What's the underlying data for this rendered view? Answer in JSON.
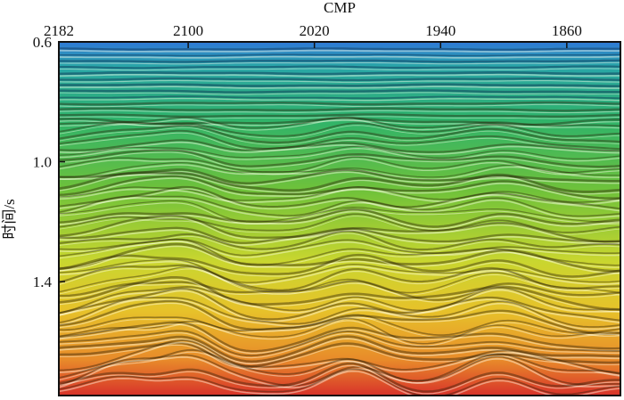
{
  "figure": {
    "x_axis": {
      "title": "CMP",
      "ticks": [
        {
          "label": "2182",
          "value": 2182
        },
        {
          "label": "2100",
          "value": 2100
        },
        {
          "label": "2020",
          "value": 2020
        },
        {
          "label": "1940",
          "value": 1940
        },
        {
          "label": "1860",
          "value": 1860
        }
      ],
      "range": [
        2182,
        1826
      ],
      "position": "top",
      "reversed": true
    },
    "y_axis": {
      "title": "时间/s",
      "ticks": [
        {
          "label": "0.6",
          "value": 0.6
        },
        {
          "label": "1.0",
          "value": 1.0
        },
        {
          "label": "1.4",
          "value": 1.4
        }
      ],
      "range": [
        0.6,
        1.78
      ],
      "unit": "s"
    },
    "image": {
      "type": "seismic-section",
      "colormap": [
        "#2f78d6",
        "#2fb36a",
        "#6fc23a",
        "#c9d62f",
        "#e7c22a",
        "#e88a2a",
        "#d8322a"
      ]
    }
  }
}
